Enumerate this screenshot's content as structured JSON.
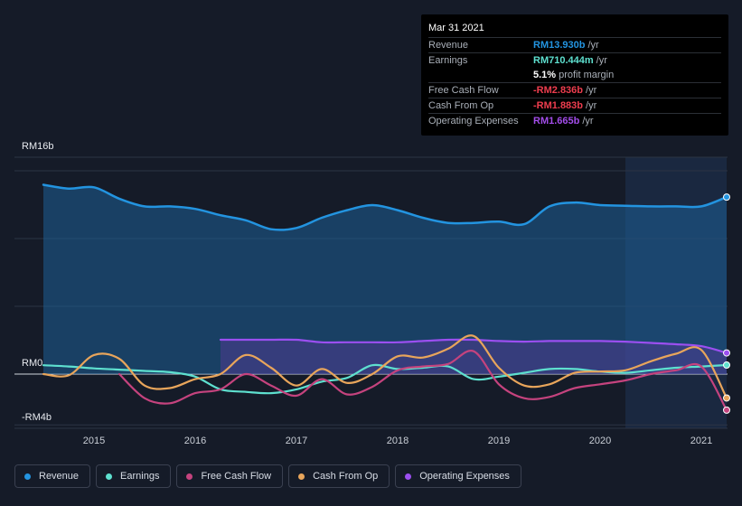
{
  "tooltip": {
    "date": "Mar 31 2021",
    "rows": [
      {
        "label": "Revenue",
        "value": "RM13.930b",
        "unit": "/yr",
        "color": "#2394e0"
      },
      {
        "label": "Earnings",
        "value": "RM710.444m",
        "unit": "/yr",
        "color": "#5ee0cf"
      },
      {
        "label": "",
        "value": "5.1%",
        "unit": "profit margin",
        "color": "#ffffff"
      },
      {
        "label": "Free Cash Flow",
        "value": "-RM2.836b",
        "unit": "/yr",
        "color": "#ee3d4e"
      },
      {
        "label": "Cash From Op",
        "value": "-RM1.883b",
        "unit": "/yr",
        "color": "#ee3d4e"
      },
      {
        "label": "Operating Expenses",
        "value": "RM1.665b",
        "unit": "/yr",
        "color": "#a34dea"
      }
    ]
  },
  "legend": [
    {
      "label": "Revenue",
      "color": "#2394e0"
    },
    {
      "label": "Earnings",
      "color": "#5ee0cf"
    },
    {
      "label": "Free Cash Flow",
      "color": "#c5437e"
    },
    {
      "label": "Cash From Op",
      "color": "#e8a55b"
    },
    {
      "label": "Operating Expenses",
      "color": "#9b4ff0"
    }
  ],
  "chart_data": {
    "type": "line",
    "ylabel_top": "RM16b",
    "ylabel_zero": "RM0",
    "ylabel_bottom": "-RM4b",
    "ylim": [
      -4,
      16
    ],
    "xlim": [
      2014.5,
      2021.25
    ],
    "x_ticks": [
      "2015",
      "2016",
      "2017",
      "2018",
      "2019",
      "2020",
      "2021"
    ],
    "forecast_start": 2020.25,
    "series": [
      {
        "name": "Revenue",
        "color": "#2394e0",
        "fill": true,
        "x": [
          2014.5,
          2014.75,
          2015.0,
          2015.25,
          2015.5,
          2015.75,
          2016.0,
          2016.25,
          2016.5,
          2016.75,
          2017.0,
          2017.25,
          2017.5,
          2017.75,
          2018.0,
          2018.25,
          2018.5,
          2018.75,
          2019.0,
          2019.25,
          2019.5,
          2019.75,
          2020.0,
          2020.25,
          2020.5,
          2020.75,
          2021.0,
          2021.25
        ],
        "y": [
          14.9,
          14.6,
          14.7,
          13.8,
          13.2,
          13.2,
          13.0,
          12.5,
          12.1,
          11.4,
          11.5,
          12.3,
          12.9,
          13.3,
          12.9,
          12.3,
          11.9,
          11.9,
          12.0,
          11.8,
          13.2,
          13.5,
          13.3,
          13.25,
          13.2,
          13.2,
          13.2,
          13.93
        ]
      },
      {
        "name": "Earnings",
        "color": "#5ee0cf",
        "fill": false,
        "x": [
          2014.5,
          2014.75,
          2015.0,
          2015.25,
          2015.5,
          2015.75,
          2016.0,
          2016.25,
          2016.5,
          2016.75,
          2017.0,
          2017.25,
          2017.5,
          2017.75,
          2018.0,
          2018.25,
          2018.5,
          2018.75,
          2019.0,
          2019.25,
          2019.5,
          2019.75,
          2020.0,
          2020.25,
          2020.5,
          2020.75,
          2021.0,
          2021.25
        ],
        "y": [
          0.7,
          0.6,
          0.45,
          0.35,
          0.25,
          0.15,
          -0.2,
          -1.2,
          -1.4,
          -1.5,
          -1.2,
          -0.6,
          -0.3,
          0.7,
          0.4,
          0.5,
          0.6,
          -0.4,
          -0.2,
          0.1,
          0.4,
          0.4,
          0.2,
          0.1,
          0.3,
          0.5,
          0.6,
          0.71
        ]
      },
      {
        "name": "Free Cash Flow",
        "color": "#c5437e",
        "fill": false,
        "x": [
          2015.25,
          2015.5,
          2015.75,
          2016.0,
          2016.25,
          2016.5,
          2016.75,
          2017.0,
          2017.25,
          2017.5,
          2017.75,
          2018.0,
          2018.25,
          2018.5,
          2018.75,
          2019.0,
          2019.25,
          2019.5,
          2019.75,
          2020.0,
          2020.25,
          2020.5,
          2020.75,
          2021.0,
          2021.25
        ],
        "y": [
          0.0,
          -1.9,
          -2.3,
          -1.5,
          -1.2,
          0.0,
          -0.9,
          -1.7,
          -0.4,
          -1.6,
          -1.0,
          0.3,
          0.6,
          0.8,
          1.8,
          -0.8,
          -1.9,
          -1.8,
          -1.1,
          -0.8,
          -0.5,
          0.0,
          0.3,
          0.6,
          -2.836
        ]
      },
      {
        "name": "Cash From Op",
        "color": "#e8a55b",
        "fill": false,
        "x": [
          2014.5,
          2014.75,
          2015.0,
          2015.25,
          2015.5,
          2015.75,
          2016.0,
          2016.25,
          2016.5,
          2016.75,
          2017.0,
          2017.25,
          2017.5,
          2017.75,
          2018.0,
          2018.25,
          2018.5,
          2018.75,
          2019.0,
          2019.25,
          2019.5,
          2019.75,
          2020.0,
          2020.25,
          2020.5,
          2020.75,
          2021.0,
          2021.25
        ],
        "y": [
          0.0,
          -0.1,
          1.5,
          1.2,
          -0.9,
          -1.1,
          -0.4,
          0.0,
          1.5,
          0.5,
          -0.9,
          0.4,
          -0.7,
          0.0,
          1.4,
          1.3,
          2.0,
          3.0,
          0.5,
          -0.9,
          -0.8,
          0.1,
          0.2,
          0.3,
          1.0,
          1.6,
          1.9,
          -1.883
        ]
      },
      {
        "name": "Operating Expenses",
        "color": "#9b4ff0",
        "fill": true,
        "x": [
          2016.25,
          2016.5,
          2016.75,
          2017.0,
          2017.25,
          2017.5,
          2017.75,
          2018.0,
          2018.25,
          2018.5,
          2018.75,
          2019.0,
          2019.25,
          2019.5,
          2019.75,
          2020.0,
          2020.25,
          2020.5,
          2020.75,
          2021.0,
          2021.25
        ],
        "y": [
          2.7,
          2.7,
          2.7,
          2.7,
          2.5,
          2.5,
          2.5,
          2.5,
          2.6,
          2.7,
          2.7,
          2.6,
          2.55,
          2.6,
          2.6,
          2.6,
          2.55,
          2.45,
          2.35,
          2.2,
          1.665
        ]
      }
    ]
  }
}
